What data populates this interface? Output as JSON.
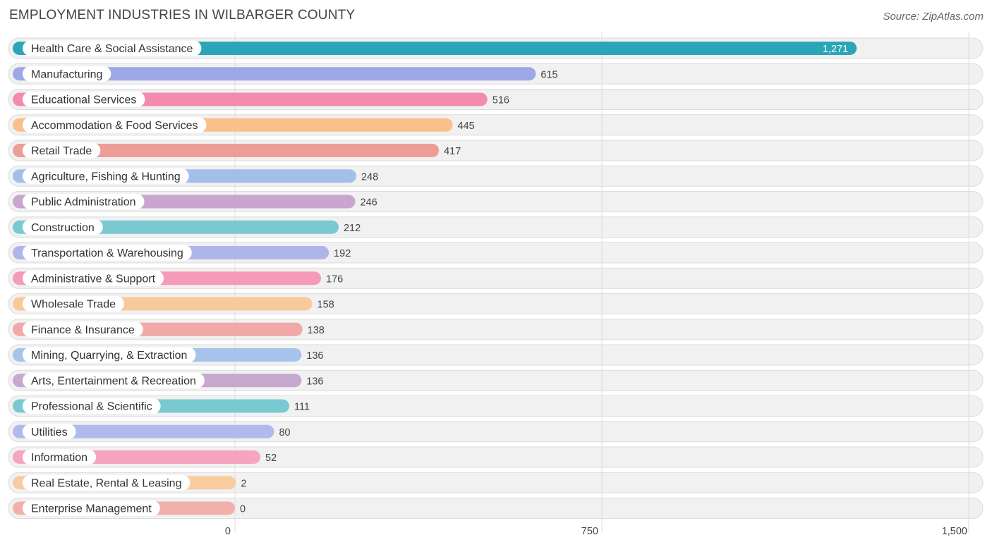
{
  "chart_data": {
    "type": "bar",
    "orientation": "horizontal",
    "title": "EMPLOYMENT INDUSTRIES IN WILBARGER COUNTY",
    "source": "Source: ZipAtlas.com",
    "xlim": [
      0,
      1500
    ],
    "ticks": [
      {
        "value": 0,
        "label": "0"
      },
      {
        "value": 750,
        "label": "750"
      },
      {
        "value": 1500,
        "label": "1,500"
      }
    ],
    "categories": [
      "Health Care & Social Assistance",
      "Manufacturing",
      "Educational Services",
      "Accommodation & Food Services",
      "Retail Trade",
      "Agriculture, Fishing & Hunting",
      "Public Administration",
      "Construction",
      "Transportation & Warehousing",
      "Administrative & Support",
      "Wholesale Trade",
      "Finance & Insurance",
      "Mining, Quarrying, & Extraction",
      "Arts, Entertainment & Recreation",
      "Professional & Scientific",
      "Utilities",
      "Information",
      "Real Estate, Rental & Leasing",
      "Enterprise Management"
    ],
    "values": [
      1271,
      615,
      516,
      445,
      417,
      248,
      246,
      212,
      192,
      176,
      158,
      138,
      136,
      136,
      111,
      80,
      52,
      2,
      0
    ],
    "value_labels": [
      "1,271",
      "615",
      "516",
      "445",
      "417",
      "248",
      "246",
      "212",
      "192",
      "176",
      "158",
      "138",
      "136",
      "136",
      "111",
      "80",
      "52",
      "2",
      "0"
    ],
    "colors": [
      "#2aa6b8",
      "#9ea8e6",
      "#f48aaf",
      "#f9c08a",
      "#ec9d98",
      "#a2bfea",
      "#c8a6cd",
      "#79c9d1",
      "#afb5ea",
      "#f59ab9",
      "#f9c99a",
      "#f0a9a6",
      "#a6c3ec",
      "#c7a9cf",
      "#79c9d1",
      "#b2b9ec",
      "#f7a4c0",
      "#f9cba0",
      "#f2b0ad"
    ]
  }
}
